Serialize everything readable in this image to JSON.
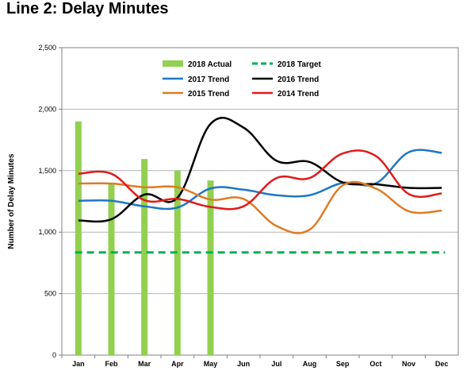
{
  "title": "Line 2: Delay Minutes",
  "chart_data": {
    "type": "bar+line",
    "categories": [
      "Jan",
      "Feb",
      "Mar",
      "Apr",
      "May",
      "Jun",
      "Jul",
      "Aug",
      "Sep",
      "Oct",
      "Nov",
      "Dec"
    ],
    "ylabel": "Number of Delay Minutes",
    "ylim": [
      0,
      2500
    ],
    "yticks": [
      0,
      500,
      1000,
      1500,
      2000,
      2500
    ],
    "ytick_labels": [
      "0",
      "500",
      "1,000",
      "1,500",
      "2,000",
      "2,500"
    ],
    "grid": "horizontal",
    "legend_position": "top-center",
    "bars": {
      "name": "2018 Actual",
      "color": "#92d050",
      "values": [
        1900,
        1390,
        1595,
        1500,
        1420,
        null,
        null,
        null,
        null,
        null,
        null,
        null
      ]
    },
    "target": {
      "name": "2018 Target",
      "color": "#00b050",
      "value": 835
    },
    "series": [
      {
        "name": "2017 Trend",
        "color": "#1f77c4",
        "values": [
          1255,
          1255,
          1210,
          1200,
          1355,
          1345,
          1300,
          1300,
          1400,
          1395,
          1650,
          1645
        ]
      },
      {
        "name": "2016 Trend",
        "color": "#000000",
        "values": [
          1095,
          1105,
          1305,
          1280,
          1880,
          1850,
          1580,
          1570,
          1405,
          1390,
          1360,
          1360
        ]
      },
      {
        "name": "2015 Trend",
        "color": "#e07b24",
        "values": [
          1395,
          1395,
          1365,
          1365,
          1265,
          1270,
          1050,
          1020,
          1380,
          1355,
          1170,
          1175
        ]
      },
      {
        "name": "2014 Trend",
        "color": "#e21a1a",
        "values": [
          1475,
          1475,
          1260,
          1270,
          1205,
          1210,
          1440,
          1440,
          1640,
          1620,
          1310,
          1315
        ]
      }
    ]
  }
}
